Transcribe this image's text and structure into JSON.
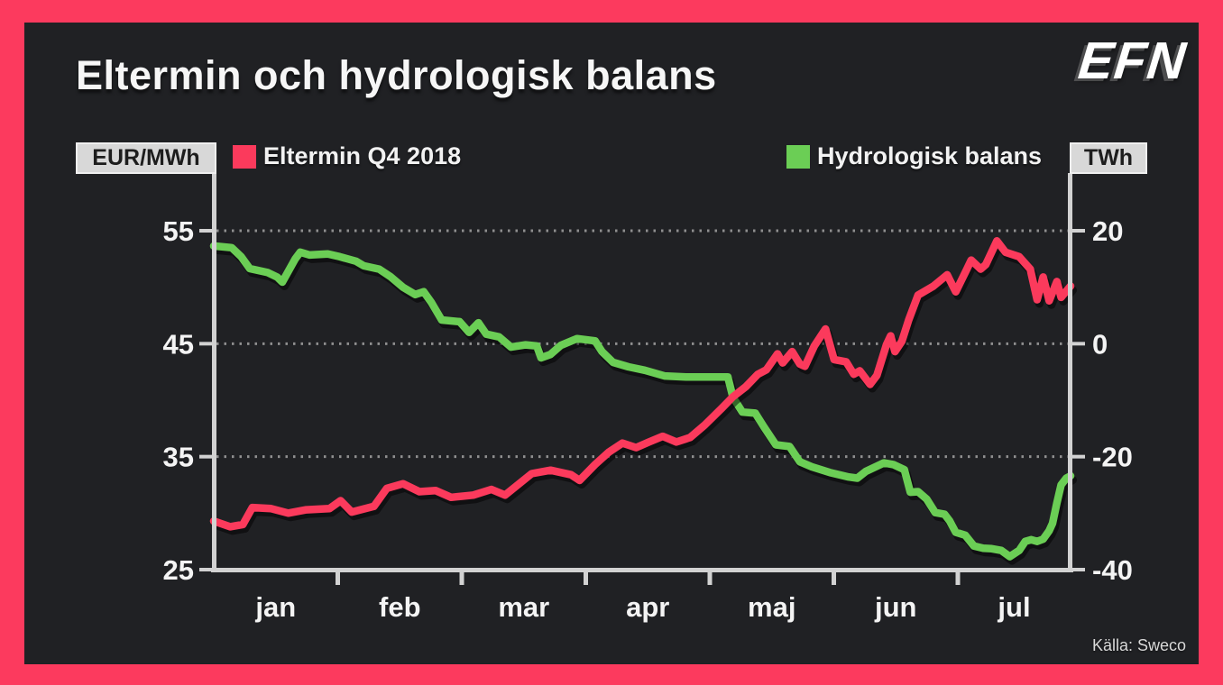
{
  "frame": {
    "border_color": "#fc3a5e",
    "panel_color": "#202124"
  },
  "header": {
    "title": "Eltermin och hydrologisk balans",
    "logo": "EFN"
  },
  "legend": [
    {
      "label": "Eltermin Q4 2018",
      "color": "#fb3a5c"
    },
    {
      "label": "Hydrologisk balans",
      "color": "#6bce55"
    }
  ],
  "source": "Källa: Sweco",
  "chart_data": {
    "type": "line",
    "title": "Eltermin och hydrologisk balans",
    "x_categories": [
      "jan",
      "feb",
      "mar",
      "apr",
      "maj",
      "jun",
      "jul"
    ],
    "x_unit": "fraction of plot width, jan 1 to late jul 2018",
    "left_axis": {
      "unit": "EUR/MWh",
      "ticks": [
        55,
        45,
        35,
        25
      ],
      "range": [
        25,
        55
      ]
    },
    "right_axis": {
      "unit": "TWh",
      "ticks": [
        20,
        0,
        -20,
        -40
      ],
      "range": [
        -40,
        20
      ]
    },
    "grid": {
      "horizontal_dotted_at_left_values": [
        55,
        45,
        35
      ],
      "color": "#8f8f8f"
    },
    "legend_position": "top",
    "axis_color": "#d2d2d2",
    "series": [
      {
        "name": "Hydrologisk balans",
        "axis": "right",
        "color": "#6bce55",
        "unit": "TWh",
        "points": [
          [
            0.0,
            17.3
          ],
          [
            0.021,
            17.0
          ],
          [
            0.032,
            15.4
          ],
          [
            0.042,
            13.3
          ],
          [
            0.063,
            12.6
          ],
          [
            0.074,
            11.8
          ],
          [
            0.08,
            10.9
          ],
          [
            0.095,
            15.0
          ],
          [
            0.101,
            16.2
          ],
          [
            0.112,
            15.7
          ],
          [
            0.133,
            15.9
          ],
          [
            0.147,
            15.4
          ],
          [
            0.166,
            14.6
          ],
          [
            0.175,
            13.8
          ],
          [
            0.193,
            13.2
          ],
          [
            0.206,
            11.9
          ],
          [
            0.221,
            10.0
          ],
          [
            0.235,
            8.7
          ],
          [
            0.245,
            9.2
          ],
          [
            0.254,
            7.3
          ],
          [
            0.266,
            4.2
          ],
          [
            0.287,
            3.9
          ],
          [
            0.298,
            2.0
          ],
          [
            0.309,
            3.7
          ],
          [
            0.318,
            1.7
          ],
          [
            0.333,
            1.2
          ],
          [
            0.347,
            -0.6
          ],
          [
            0.364,
            -0.2
          ],
          [
            0.377,
            -0.4
          ],
          [
            0.382,
            -2.5
          ],
          [
            0.393,
            -1.9
          ],
          [
            0.405,
            -0.3
          ],
          [
            0.424,
            0.9
          ],
          [
            0.445,
            0.5
          ],
          [
            0.453,
            -1.4
          ],
          [
            0.466,
            -3.3
          ],
          [
            0.484,
            -4.1
          ],
          [
            0.503,
            -4.7
          ],
          [
            0.526,
            -5.7
          ],
          [
            0.551,
            -5.9
          ],
          [
            0.6,
            -5.9
          ],
          [
            0.606,
            -9.5
          ],
          [
            0.617,
            -12.1
          ],
          [
            0.632,
            -12.3
          ],
          [
            0.642,
            -14.7
          ],
          [
            0.656,
            -17.9
          ],
          [
            0.672,
            -18.2
          ],
          [
            0.684,
            -20.9
          ],
          [
            0.698,
            -21.8
          ],
          [
            0.719,
            -22.8
          ],
          [
            0.741,
            -23.6
          ],
          [
            0.751,
            -23.8
          ],
          [
            0.761,
            -22.6
          ],
          [
            0.782,
            -21.1
          ],
          [
            0.793,
            -21.4
          ],
          [
            0.806,
            -22.3
          ],
          [
            0.813,
            -26.3
          ],
          [
            0.822,
            -26.2
          ],
          [
            0.832,
            -27.5
          ],
          [
            0.842,
            -29.9
          ],
          [
            0.853,
            -30.2
          ],
          [
            0.859,
            -31.4
          ],
          [
            0.866,
            -33.4
          ],
          [
            0.877,
            -33.9
          ],
          [
            0.887,
            -35.8
          ],
          [
            0.898,
            -36.2
          ],
          [
            0.908,
            -36.3
          ],
          [
            0.919,
            -36.6
          ],
          [
            0.929,
            -37.7
          ],
          [
            0.94,
            -36.6
          ],
          [
            0.947,
            -35.0
          ],
          [
            0.954,
            -34.7
          ],
          [
            0.961,
            -35.0
          ],
          [
            0.968,
            -34.6
          ],
          [
            0.975,
            -33.1
          ],
          [
            0.979,
            -31.8
          ],
          [
            0.984,
            -28.2
          ],
          [
            0.989,
            -25.0
          ],
          [
            0.995,
            -23.8
          ],
          [
            1.0,
            -23.4
          ]
        ]
      },
      {
        "name": "Eltermin Q4 2018",
        "axis": "left",
        "color": "#fb3a5c",
        "unit": "EUR/MWh",
        "points": [
          [
            0.0,
            29.3
          ],
          [
            0.019,
            28.8
          ],
          [
            0.034,
            29.0
          ],
          [
            0.045,
            30.5
          ],
          [
            0.067,
            30.4
          ],
          [
            0.087,
            30.0
          ],
          [
            0.108,
            30.3
          ],
          [
            0.135,
            30.4
          ],
          [
            0.148,
            31.1
          ],
          [
            0.161,
            30.1
          ],
          [
            0.187,
            30.6
          ],
          [
            0.202,
            32.2
          ],
          [
            0.221,
            32.6
          ],
          [
            0.24,
            31.9
          ],
          [
            0.259,
            32.0
          ],
          [
            0.277,
            31.4
          ],
          [
            0.303,
            31.6
          ],
          [
            0.324,
            32.1
          ],
          [
            0.34,
            31.6
          ],
          [
            0.371,
            33.5
          ],
          [
            0.393,
            33.8
          ],
          [
            0.417,
            33.4
          ],
          [
            0.427,
            32.9
          ],
          [
            0.445,
            34.3
          ],
          [
            0.461,
            35.4
          ],
          [
            0.477,
            36.2
          ],
          [
            0.493,
            35.8
          ],
          [
            0.508,
            36.3
          ],
          [
            0.524,
            36.8
          ],
          [
            0.54,
            36.3
          ],
          [
            0.556,
            36.7
          ],
          [
            0.573,
            37.8
          ],
          [
            0.593,
            39.3
          ],
          [
            0.606,
            40.3
          ],
          [
            0.621,
            41.2
          ],
          [
            0.635,
            42.3
          ],
          [
            0.645,
            42.7
          ],
          [
            0.658,
            44.1
          ],
          [
            0.664,
            43.3
          ],
          [
            0.675,
            44.3
          ],
          [
            0.684,
            43.2
          ],
          [
            0.69,
            43.0
          ],
          [
            0.701,
            44.8
          ],
          [
            0.714,
            46.3
          ],
          [
            0.724,
            43.6
          ],
          [
            0.738,
            43.4
          ],
          [
            0.747,
            42.3
          ],
          [
            0.754,
            42.6
          ],
          [
            0.766,
            41.4
          ],
          [
            0.774,
            42.2
          ],
          [
            0.785,
            44.9
          ],
          [
            0.79,
            45.7
          ],
          [
            0.795,
            44.3
          ],
          [
            0.803,
            45.2
          ],
          [
            0.811,
            47.1
          ],
          [
            0.822,
            49.3
          ],
          [
            0.84,
            50.1
          ],
          [
            0.856,
            51.1
          ],
          [
            0.866,
            49.6
          ],
          [
            0.879,
            51.6
          ],
          [
            0.884,
            52.4
          ],
          [
            0.895,
            51.6
          ],
          [
            0.901,
            52.0
          ],
          [
            0.914,
            54.1
          ],
          [
            0.924,
            53.1
          ],
          [
            0.94,
            52.7
          ],
          [
            0.953,
            51.6
          ],
          [
            0.961,
            48.9
          ],
          [
            0.968,
            50.9
          ],
          [
            0.975,
            48.8
          ],
          [
            0.984,
            50.5
          ],
          [
            0.989,
            49.1
          ],
          [
            1.0,
            50.1
          ]
        ]
      }
    ]
  }
}
